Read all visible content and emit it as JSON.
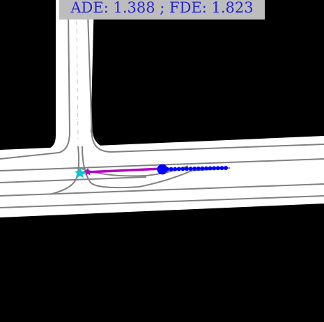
{
  "header": {
    "metrics": "ADE: 1.388 ; FDE: 1.823"
  },
  "colors": {
    "background": "#000000",
    "road_surface": "#ffffff",
    "lane_line": "#808080",
    "history_track": "#00c8d0",
    "prediction_track": "#b000c0",
    "ground_truth_future": "#0000ff",
    "label_background": "#bdbdbd",
    "label_text": "#2323d6"
  },
  "legend_markers": {
    "goal_marker": "star",
    "current_position_marker": "circle"
  }
}
